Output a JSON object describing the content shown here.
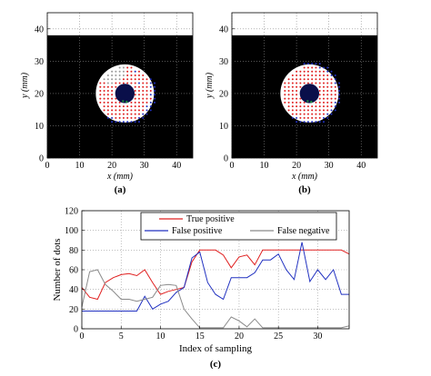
{
  "chart_data": [
    {
      "panel": "(a)",
      "type": "scatter",
      "xlabel": "x (mm)",
      "ylabel": "y (mm)",
      "xlim": [
        0,
        45
      ],
      "ylim": [
        0,
        45
      ],
      "xticks": [
        0,
        10,
        20,
        30,
        40
      ],
      "yticks": [
        0,
        10,
        20,
        30,
        40
      ],
      "grid": true,
      "black_region_top": 38,
      "outer_circle": {
        "cx": 24,
        "cy": 20,
        "r": 9
      },
      "inner_circle": {
        "cx": 24,
        "cy": 20,
        "r": 3
      },
      "dot_colors": {
        "red": "#e02020",
        "blue": "#2030c0",
        "gray": "#9a9a9a",
        "green": "#209040",
        "background": "#000000"
      }
    },
    {
      "panel": "(b)",
      "type": "scatter",
      "xlabel": "x (mm)",
      "ylabel": "y (mm)",
      "xlim": [
        0,
        45
      ],
      "ylim": [
        0,
        45
      ],
      "xticks": [
        0,
        10,
        20,
        30,
        40
      ],
      "yticks": [
        0,
        10,
        20,
        30,
        40
      ],
      "grid": true,
      "black_region_top": 38,
      "outer_circle": {
        "cx": 24,
        "cy": 20,
        "r": 9
      },
      "inner_circle": {
        "cx": 24,
        "cy": 20,
        "r": 3
      },
      "dot_colors": {
        "red": "#e02020",
        "blue": "#2030c0",
        "green": "#209040",
        "background": "#000000"
      }
    },
    {
      "panel": "(c)",
      "type": "line",
      "xlabel": "Index of sampling",
      "ylabel": "Number of dots",
      "xlim": [
        0,
        34
      ],
      "ylim": [
        0,
        120
      ],
      "xticks": [
        0,
        5,
        10,
        15,
        20,
        25,
        30
      ],
      "yticks": [
        0,
        20,
        40,
        60,
        80,
        100,
        120
      ],
      "grid": true,
      "legend_position": "top-right",
      "x": [
        0,
        1,
        2,
        3,
        4,
        5,
        6,
        7,
        8,
        9,
        10,
        11,
        12,
        13,
        14,
        15,
        16,
        17,
        18,
        19,
        20,
        21,
        22,
        23,
        24,
        25,
        26,
        27,
        28,
        29,
        30,
        31,
        32,
        33,
        34
      ],
      "series": [
        {
          "name": "True positive",
          "color": "#e02020",
          "values": [
            42,
            32,
            30,
            47,
            52,
            55,
            56,
            54,
            60,
            47,
            35,
            38,
            40,
            42,
            68,
            80,
            80,
            80,
            75,
            62,
            73,
            75,
            65,
            80,
            80,
            80,
            80,
            80,
            80,
            80,
            80,
            80,
            80,
            80,
            76
          ]
        },
        {
          "name": "False positive",
          "color": "#2030c0",
          "values": [
            18,
            18,
            18,
            18,
            18,
            18,
            18,
            18,
            33,
            20,
            25,
            28,
            37,
            42,
            72,
            78,
            47,
            35,
            30,
            52,
            52,
            52,
            57,
            70,
            70,
            76,
            60,
            50,
            88,
            48,
            60,
            50,
            60,
            35,
            35
          ]
        },
        {
          "name": "False negative",
          "color": "#8a8a8a",
          "values": [
            22,
            58,
            60,
            45,
            38,
            30,
            30,
            28,
            30,
            32,
            44,
            45,
            44,
            20,
            10,
            1,
            1,
            1,
            1,
            12,
            8,
            2,
            10,
            1,
            1,
            1,
            1,
            1,
            1,
            1,
            1,
            1,
            1,
            1,
            3
          ]
        }
      ]
    }
  ]
}
